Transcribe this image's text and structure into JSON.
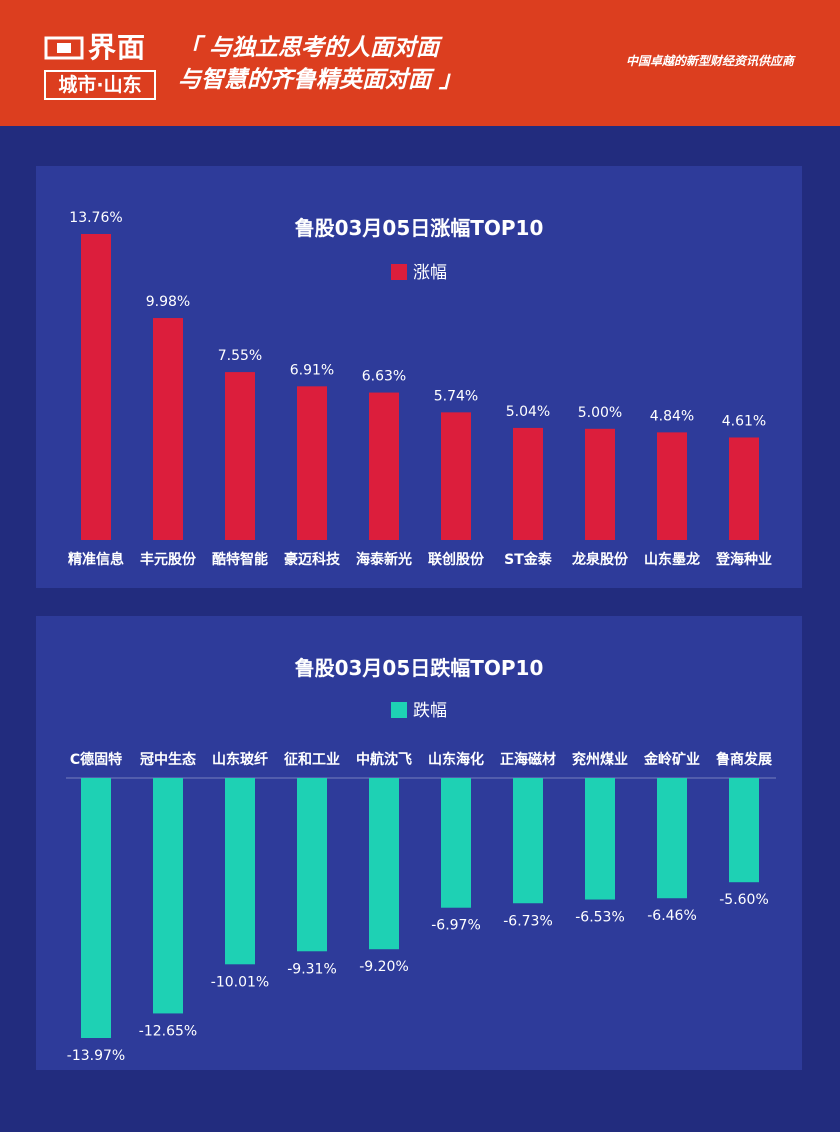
{
  "header": {
    "logo_name": "界面",
    "logo_sub": "城市·山东",
    "slogan_line1": "「 与独立思考的人面对面",
    "slogan_line2": "与智慧的齐鲁精英面对面 」",
    "tagline": "中国卓越的新型财经资讯供应商"
  },
  "colors": {
    "header_bg": "#dc3e1f",
    "page_bg": "#222c7e",
    "panel_bg": "#2e3b9a",
    "rise_bar": "#dc1e3c",
    "fall_bar": "#1ed1b4"
  },
  "chart_data": [
    {
      "type": "bar",
      "title": "鲁股03月05日涨幅TOP10",
      "series": [
        {
          "name": "涨幅",
          "values": [
            13.76,
            9.98,
            7.55,
            6.91,
            6.63,
            5.74,
            5.04,
            5.0,
            4.84,
            4.61
          ],
          "labels": [
            "13.76%",
            "9.98%",
            "7.55%",
            "6.91%",
            "6.63%",
            "5.74%",
            "5.04%",
            "5.00%",
            "4.84%",
            "4.61%"
          ]
        }
      ],
      "categories": [
        "精准信息",
        "丰元股份",
        "酷特智能",
        "豪迈科技",
        "海泰新光",
        "联创股份",
        "ST金泰",
        "龙泉股份",
        "山东墨龙",
        "登海种业"
      ],
      "legend_position": "top-center",
      "grid": false
    },
    {
      "type": "bar",
      "title": "鲁股03月05日跌幅TOP10",
      "series": [
        {
          "name": "跌幅",
          "values": [
            -13.97,
            -12.65,
            -10.01,
            -9.31,
            -9.2,
            -6.97,
            -6.73,
            -6.53,
            -6.46,
            -5.6
          ],
          "labels": [
            "-13.97%",
            "-12.65%",
            "-10.01%",
            "-9.31%",
            "-9.20%",
            "-6.97%",
            "-6.73%",
            "-6.53%",
            "-6.46%",
            "-5.60%"
          ]
        }
      ],
      "categories": [
        "C德固特",
        "冠中生态",
        "山东玻纤",
        "征和工业",
        "中航沈飞",
        "山东海化",
        "正海磁材",
        "兖州煤业",
        "金岭矿业",
        "鲁商发展"
      ],
      "legend_position": "top-center",
      "grid": false
    }
  ]
}
